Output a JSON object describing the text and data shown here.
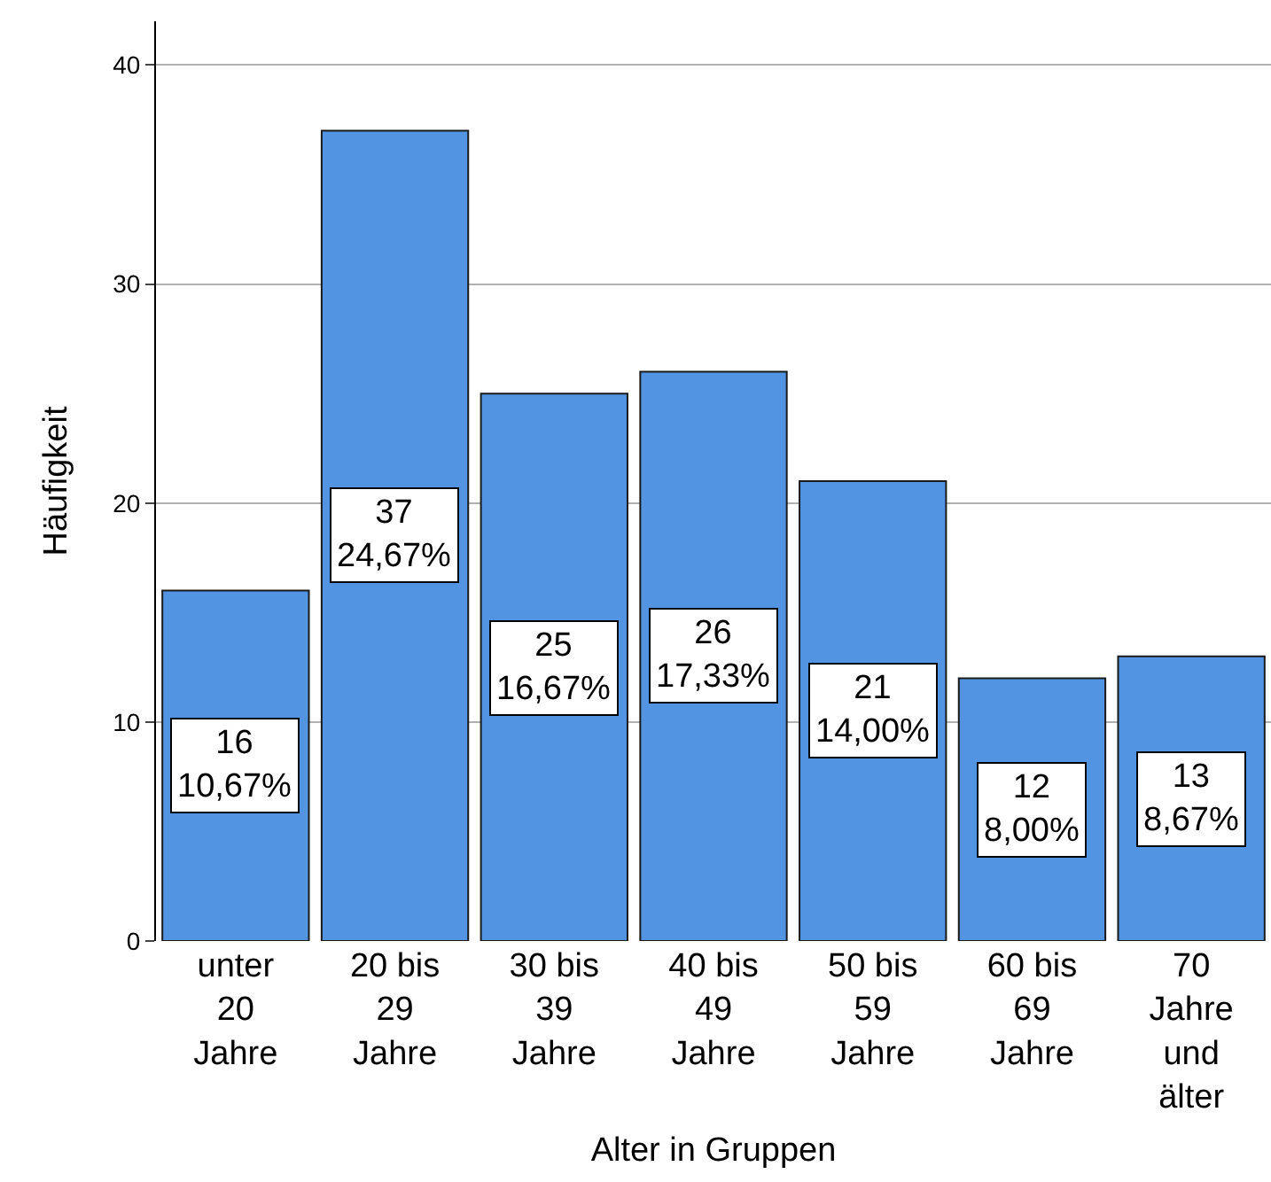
{
  "chart_data": {
    "type": "bar",
    "xlabel": "Alter in Gruppen",
    "ylabel": "Häufigkeit",
    "categories": [
      "unter\n20\nJahre",
      "20 bis\n29\nJahre",
      "30 bis\n39\nJahre",
      "40 bis\n49\nJahre",
      "50 bis\n59\nJahre",
      "60 bis\n69\nJahre",
      "70\nJahre\nund\nälter"
    ],
    "values": [
      16,
      37,
      25,
      26,
      21,
      12,
      13
    ],
    "value_labels": [
      "16\n10,67%",
      "37\n24,67%",
      "25\n16,67%",
      "26\n17,33%",
      "21\n14,00%",
      "12\n8,00%",
      "13\n8,67%"
    ],
    "color": "#5294e2",
    "ylim": [
      0,
      42
    ],
    "yticks": [
      0,
      10,
      20,
      30,
      40
    ],
    "grid": "y"
  }
}
